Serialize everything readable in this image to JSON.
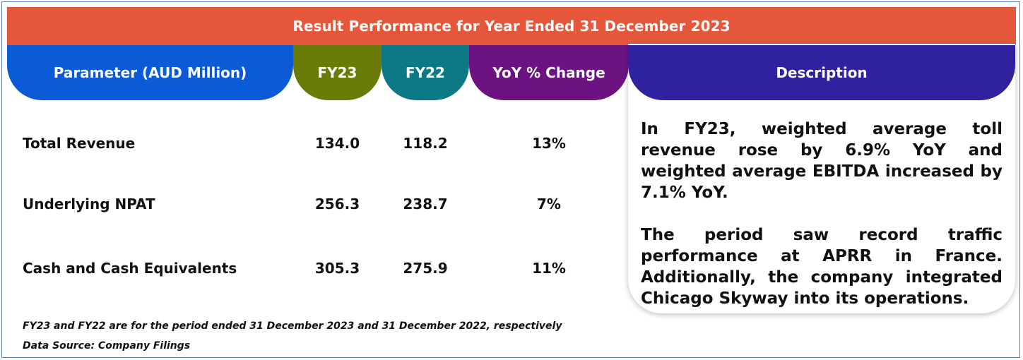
{
  "title": "Result Performance for Year Ended 31 December 2023",
  "headers": {
    "parameter": "Parameter (AUD Million)",
    "fy23": "FY23",
    "fy22": "FY22",
    "yoy": "YoY % Change",
    "description": "Description"
  },
  "rows": [
    {
      "label": "Total Revenue",
      "fy23": "134.0",
      "fy22": "118.2",
      "yoy": "13%"
    },
    {
      "label": "Underlying NPAT",
      "fy23": "256.3",
      "fy22": "238.7",
      "yoy": "7%"
    },
    {
      "label": "Cash and Cash Equivalents",
      "fy23": "305.3",
      "fy22": "275.9",
      "yoy": "11%"
    }
  ],
  "description": {
    "paragraph1": "In FY23, weighted average toll revenue rose by 6.9% YoY and weighted average EBITDA increased by 7.1% YoY.",
    "paragraph2": "The period saw record traffic performance at APRR in France. Additionally, the company integrated Chicago Skyway into its operations."
  },
  "footnotes": {
    "period_note": "FY23 and FY22 are for the period ended 31 December 2023 and 31 December 2022, respectively",
    "source": "Data Source: Company Filings"
  },
  "colors": {
    "title_bar": "#e5573a",
    "parameter_header": "#0b5ad8",
    "fy23_header": "#6b7c06",
    "fy22_header": "#0c7a86",
    "yoy_header": "#6c1381",
    "description_header": "#2f22a0"
  }
}
